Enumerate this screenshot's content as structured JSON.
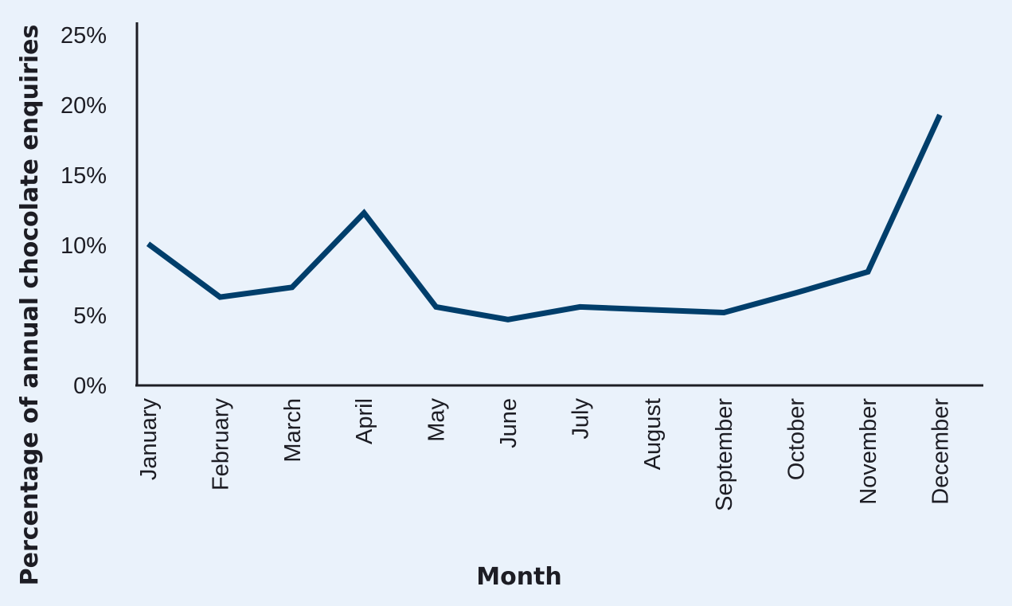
{
  "chart_data": {
    "type": "line",
    "title": "",
    "xlabel": "Month",
    "ylabel": "Percentage of annual chocolate enquiries",
    "categories": [
      "January",
      "February",
      "March",
      "April",
      "May",
      "June",
      "July",
      "August",
      "September",
      "October",
      "November",
      "December"
    ],
    "series": [
      {
        "values": [
          10.1,
          6.3,
          7.0,
          12.3,
          5.6,
          4.7,
          5.6,
          5.4,
          5.2,
          6.6,
          8.1,
          19.3
        ],
        "color": "#003e6b"
      }
    ],
    "yticks": [
      "0%",
      "5%",
      "10%",
      "15%",
      "20%",
      "25%"
    ],
    "ytick_values": [
      0,
      5,
      10,
      15,
      20,
      25
    ],
    "ylim": [
      0,
      25
    ],
    "grid": false,
    "legend": "none",
    "background": "#eaf2fb",
    "axis_color": "#1d1d24"
  }
}
